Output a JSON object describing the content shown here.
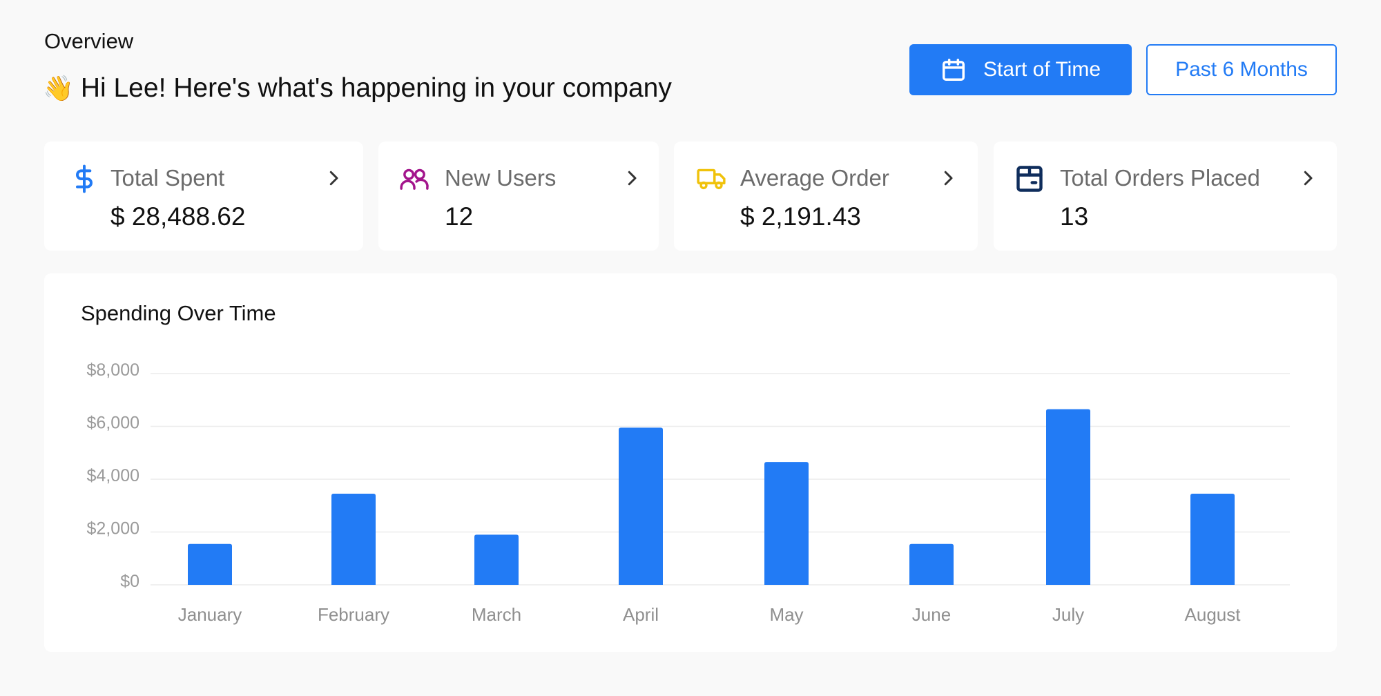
{
  "header": {
    "overview": "Overview",
    "wave_emoji": "👋",
    "greeting": "Hi Lee! Here's what's happening in your company"
  },
  "filters": {
    "start_label": "Start of Time",
    "past_label": "Past 6 Months"
  },
  "stats": [
    {
      "label": "Total Spent",
      "value": "$ 28,488.62",
      "icon": "dollar-icon",
      "color": "#227bf5"
    },
    {
      "label": "New Users",
      "value": "12",
      "icon": "users-icon",
      "color": "#a3158c"
    },
    {
      "label": "Average Order",
      "value": "$ 2,191.43",
      "icon": "truck-icon",
      "color": "#f0c20b"
    },
    {
      "label": "Total Orders Placed",
      "value": "13",
      "icon": "package-icon",
      "color": "#0f2d5c"
    }
  ],
  "colors": {
    "accent": "#227bf5",
    "background": "#f9f9f9"
  },
  "chart_data": {
    "type": "bar",
    "title": "Spending Over Time",
    "categories": [
      "January",
      "February",
      "March",
      "April",
      "May",
      "June",
      "July",
      "August"
    ],
    "values": [
      1550,
      3450,
      1900,
      5950,
      4650,
      1550,
      6650,
      3450
    ],
    "ylim": [
      0,
      8000
    ],
    "yticks": [
      0,
      2000,
      4000,
      6000,
      8000
    ],
    "ytick_labels": [
      "$0",
      "$2,000",
      "$4,000",
      "$6,000",
      "$8,000"
    ],
    "xlabel": "",
    "ylabel": "",
    "grid": true,
    "color": "#227bf5"
  }
}
